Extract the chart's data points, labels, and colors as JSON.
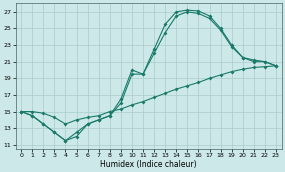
{
  "xlabel": "Humidex (Indice chaleur)",
  "background_color": "#cce8e8",
  "grid_color": "#aacccc",
  "line_color": "#1a7a6a",
  "yticks": [
    11,
    13,
    15,
    17,
    19,
    21,
    23,
    25,
    27
  ],
  "xticks": [
    0,
    1,
    2,
    3,
    4,
    5,
    6,
    7,
    8,
    9,
    10,
    11,
    12,
    13,
    14,
    15,
    16,
    17,
    18,
    19,
    20,
    21,
    22,
    23
  ],
  "line1_x": [
    0,
    1,
    2,
    3,
    4,
    5,
    6,
    7,
    8,
    9,
    10,
    11,
    12,
    13,
    14,
    15,
    16,
    17,
    18,
    19,
    20,
    21,
    22,
    23
  ],
  "line1_y": [
    15,
    14.5,
    13.5,
    12.5,
    11.5,
    12.0,
    13.5,
    14.0,
    14.5,
    16.5,
    20.0,
    19.5,
    22.5,
    25.5,
    27.0,
    27.2,
    27.1,
    26.5,
    25.0,
    23.0,
    21.5,
    21.2,
    21.0,
    20.5
  ],
  "line2_x": [
    0,
    1,
    2,
    3,
    4,
    5,
    6,
    7,
    8,
    9,
    10,
    11,
    12,
    13,
    14,
    15,
    16,
    17,
    18,
    19,
    20,
    21,
    22,
    23
  ],
  "line2_y": [
    15,
    15.0,
    14.8,
    14.3,
    13.5,
    14.0,
    14.3,
    14.5,
    15.0,
    15.3,
    15.8,
    16.2,
    16.7,
    17.2,
    17.7,
    18.1,
    18.5,
    19.0,
    19.4,
    19.8,
    20.1,
    20.3,
    20.4,
    20.5
  ],
  "line3_x": [
    0,
    1,
    2,
    3,
    4,
    5,
    6,
    7,
    8,
    9,
    10,
    11,
    12,
    13,
    14,
    15,
    16,
    17,
    18,
    19,
    20,
    21,
    22,
    23
  ],
  "line3_y": [
    15,
    14.5,
    13.5,
    12.5,
    11.5,
    12.5,
    13.5,
    14.0,
    14.5,
    16.0,
    19.5,
    19.5,
    22.0,
    24.5,
    26.5,
    27.0,
    26.8,
    26.2,
    24.8,
    22.8,
    21.5,
    21.0,
    21.0,
    20.5
  ]
}
